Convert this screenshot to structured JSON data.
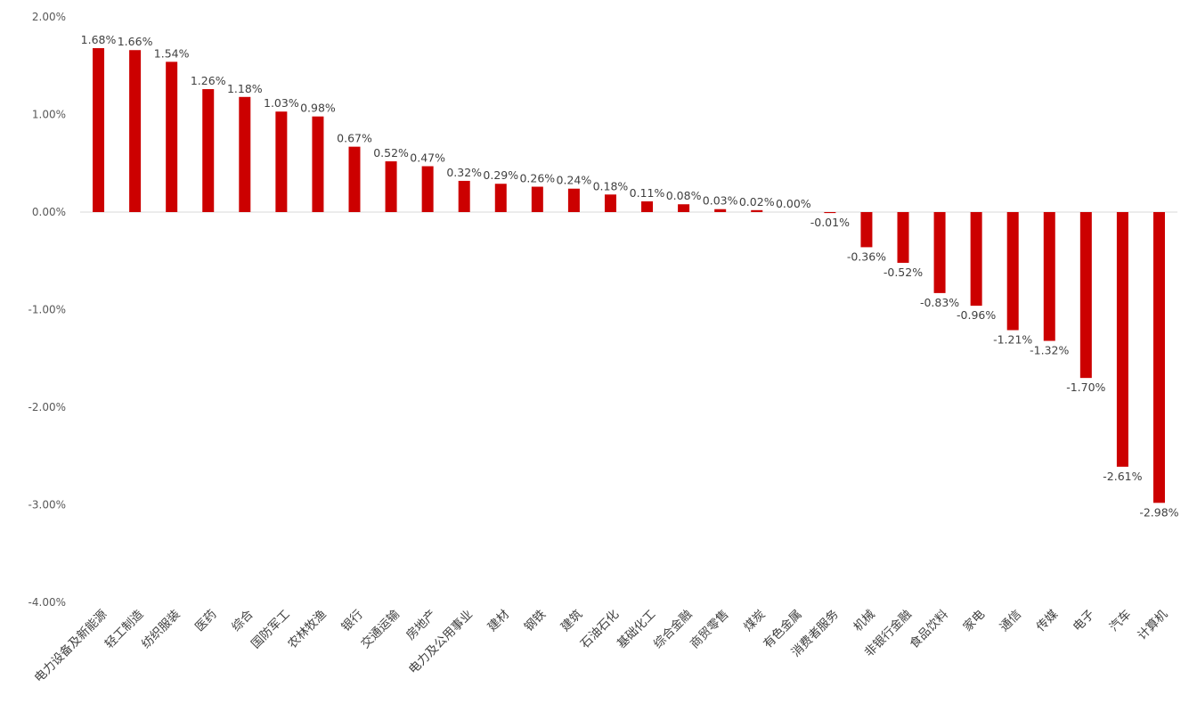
{
  "chart_data": {
    "type": "bar",
    "title": "",
    "xlabel": "",
    "ylabel": "",
    "ylim": [
      -4,
      2
    ],
    "ytick_step": 1,
    "y_tick_labels": [
      "2.00%",
      "1.00%",
      "0.00%",
      "-1.00%",
      "-2.00%",
      "-3.00%",
      "-4.00%"
    ],
    "bar_color": "#cc0000",
    "grid": false,
    "legend": "none",
    "categories": [
      "电力设备及新能源",
      "轻工制造",
      "纺织服装",
      "医药",
      "综合",
      "国防军工",
      "农林牧渔",
      "银行",
      "交通运输",
      "房地产",
      "电力及公用事业",
      "建材",
      "钢铁",
      "建筑",
      "石油石化",
      "基础化工",
      "综合金融",
      "商贸零售",
      "煤炭",
      "有色金属",
      "消费者服务",
      "机械",
      "非银行金融",
      "食品饮料",
      "家电",
      "通信",
      "传媒",
      "电子",
      "汽车",
      "计算机"
    ],
    "values": [
      1.68,
      1.66,
      1.54,
      1.26,
      1.18,
      1.03,
      0.98,
      0.67,
      0.52,
      0.47,
      0.32,
      0.29,
      0.26,
      0.24,
      0.18,
      0.11,
      0.08,
      0.03,
      0.02,
      0.0,
      -0.01,
      -0.36,
      -0.52,
      -0.83,
      -0.96,
      -1.21,
      -1.32,
      -1.7,
      -2.61,
      -2.98
    ],
    "data_labels": [
      "1.68%",
      "1.66%",
      "1.54%",
      "1.26%",
      "1.18%",
      "1.03%",
      "0.98%",
      "0.67%",
      "0.52%",
      "0.47%",
      "0.32%",
      "0.29%",
      "0.26%",
      "0.24%",
      "0.18%",
      "0.11%",
      "0.08%",
      "0.03%",
      "0.02%",
      "0.00%",
      "-0.01%",
      "-0.36%",
      "-0.52%",
      "-0.83%",
      "-0.96%",
      "-1.21%",
      "-1.32%",
      "-1.70%",
      "-2.61%",
      "-2.98%"
    ]
  }
}
